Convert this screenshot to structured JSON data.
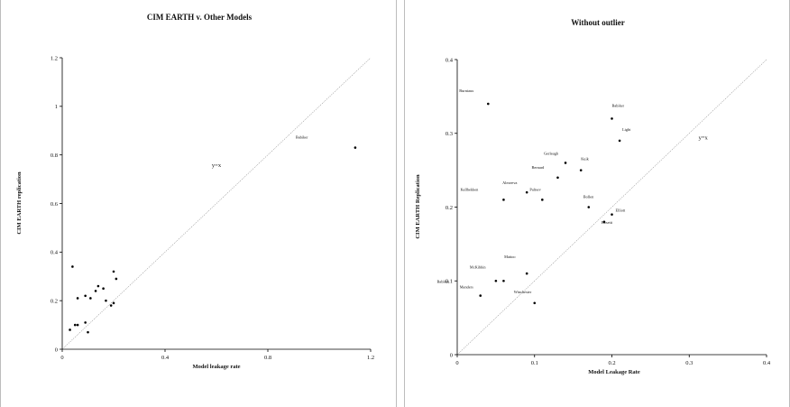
{
  "colors": {
    "point": "#000000",
    "axis": "#000000",
    "refline": "#555555",
    "border": "#bdbdbd"
  },
  "chart_data": [
    {
      "type": "scatter",
      "title": "CIM EARTH v. Other Models",
      "xlabel": "Model leakage rate",
      "ylabel": "CIM EARTH replication",
      "xlim": [
        0,
        1.2
      ],
      "ylim": [
        0,
        1.2
      ],
      "xticks": [
        "0",
        "0.4",
        "0.8",
        "1.2"
      ],
      "yticks": [
        "0",
        "0.2",
        "0.4",
        "0.6",
        "0.8",
        "1",
        "1.2"
      ],
      "grid": false,
      "reference_line": {
        "label": "y=x",
        "label_at": [
          0.6,
          0.75
        ]
      },
      "points": [
        {
          "x": 1.14,
          "y": 0.83,
          "label": "Babiker"
        },
        {
          "x": 0.04,
          "y": 0.34,
          "label": ""
        },
        {
          "x": 0.03,
          "y": 0.08,
          "label": ""
        },
        {
          "x": 0.05,
          "y": 0.1,
          "label": ""
        },
        {
          "x": 0.06,
          "y": 0.1,
          "label": ""
        },
        {
          "x": 0.06,
          "y": 0.21,
          "label": ""
        },
        {
          "x": 0.09,
          "y": 0.11,
          "label": ""
        },
        {
          "x": 0.09,
          "y": 0.22,
          "label": ""
        },
        {
          "x": 0.1,
          "y": 0.07,
          "label": ""
        },
        {
          "x": 0.11,
          "y": 0.21,
          "label": ""
        },
        {
          "x": 0.13,
          "y": 0.24,
          "label": ""
        },
        {
          "x": 0.14,
          "y": 0.26,
          "label": ""
        },
        {
          "x": 0.16,
          "y": 0.25,
          "label": ""
        },
        {
          "x": 0.17,
          "y": 0.2,
          "label": ""
        },
        {
          "x": 0.19,
          "y": 0.18,
          "label": ""
        },
        {
          "x": 0.2,
          "y": 0.19,
          "label": ""
        },
        {
          "x": 0.2,
          "y": 0.32,
          "label": ""
        },
        {
          "x": 0.21,
          "y": 0.29,
          "label": ""
        }
      ]
    },
    {
      "type": "scatter",
      "title": "Without outlier",
      "xlabel": "Model Leakage Rate",
      "ylabel": "CIM EARTH Replication",
      "xlim": [
        0,
        0.4
      ],
      "ylim": [
        0,
        0.4
      ],
      "xticks": [
        "0",
        "0.1",
        "0.2",
        "0.3",
        "0.4"
      ],
      "yticks": [
        "0",
        "0.1",
        "0.2",
        "0.3",
        "0.4"
      ],
      "grid": false,
      "reference_line": {
        "label": "y=x",
        "label_at": [
          0.318,
          0.292
        ]
      },
      "points": [
        {
          "x": 0.04,
          "y": 0.34,
          "label": "Burniaux"
        },
        {
          "x": 0.2,
          "y": 0.32,
          "label": "Babiker"
        },
        {
          "x": 0.21,
          "y": 0.29,
          "label": "Light"
        },
        {
          "x": 0.14,
          "y": 0.26,
          "label": "Gerlaugh"
        },
        {
          "x": 0.16,
          "y": 0.25,
          "label": "Kuik"
        },
        {
          "x": 0.13,
          "y": 0.24,
          "label": "Bernard"
        },
        {
          "x": 0.09,
          "y": 0.22,
          "label": "Alexeeva"
        },
        {
          "x": 0.11,
          "y": 0.21,
          "label": "Paltsev"
        },
        {
          "x": 0.06,
          "y": 0.21,
          "label": "Kallbekken"
        },
        {
          "x": 0.17,
          "y": 0.2,
          "label": "Bollen"
        },
        {
          "x": 0.2,
          "y": 0.19,
          "label": "Elliott"
        },
        {
          "x": 0.19,
          "y": 0.18,
          "label": "Bosetti"
        },
        {
          "x": 0.09,
          "y": 0.11,
          "label": "Mattoo"
        },
        {
          "x": 0.05,
          "y": 0.1,
          "label": "McKibbin"
        },
        {
          "x": 0.06,
          "y": 0.1,
          "label": "Babiker"
        },
        {
          "x": 0.03,
          "y": 0.08,
          "label": "Manders"
        },
        {
          "x": 0.1,
          "y": 0.07,
          "label": "Winchester"
        }
      ]
    }
  ]
}
